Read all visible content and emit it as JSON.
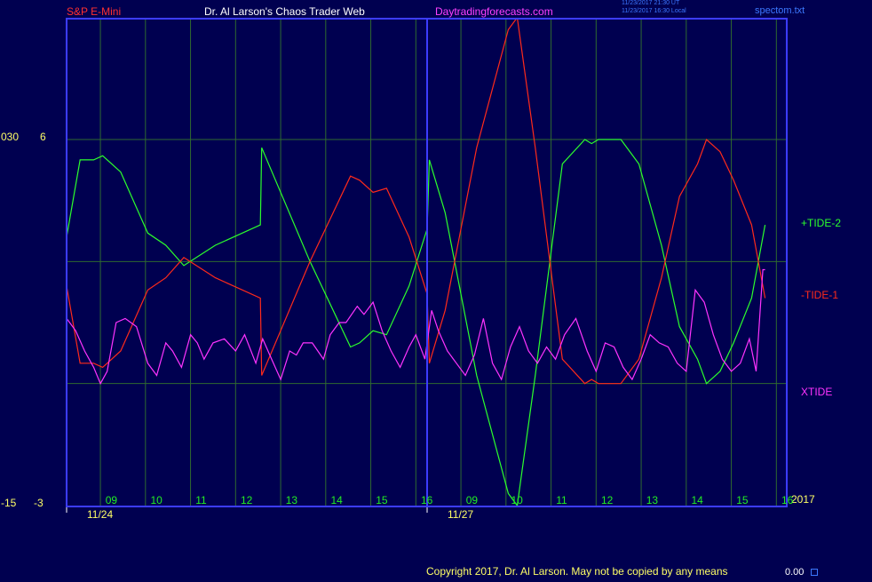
{
  "header": {
    "instrument": "S&P E-Mini",
    "author": "Dr. Al Larson's Chaos Trader Web",
    "site": "Daytradingforecasts.com",
    "time_utc": "11/23/2017 21:30 UT",
    "time_local": "11/23/2017 16:30 Local",
    "filename": "spectom.txt"
  },
  "footer": {
    "copyright": "Copyright 2017, Dr. Al Larson. May not be copied by any means",
    "value": "0.00",
    "year": "2017"
  },
  "colors": {
    "background": "#000050",
    "axis": "#3c3cff",
    "grid": "#2f6a2f",
    "tide_plus": "#2cff2c",
    "tide_minus": "#ff2a1a",
    "xtide": "#ff33ff",
    "header_red": "#ff3030",
    "header_white": "#ffffff",
    "header_magenta": "#ff40ff",
    "hour_label": "#22ee22",
    "date_label": "#ffff66",
    "y_label": "#ffff66"
  },
  "chart_data": {
    "type": "line",
    "title": "",
    "xlabel": "",
    "ylabel": "",
    "grid": true,
    "xlim": [
      0,
      16
    ],
    "ylim": [
      -3,
      6
    ],
    "y_ticks": [
      {
        "value": 6,
        "label": "6",
        "alt": "030"
      },
      {
        "value": -3,
        "label": "-3",
        "alt": "-15"
      }
    ],
    "x_hour_ticks": [
      {
        "x": 1,
        "label": "09"
      },
      {
        "x": 2,
        "label": "10"
      },
      {
        "x": 3,
        "label": "11"
      },
      {
        "x": 4,
        "label": "12"
      },
      {
        "x": 5,
        "label": "13"
      },
      {
        "x": 6,
        "label": "14"
      },
      {
        "x": 7,
        "label": "15"
      },
      {
        "x": 8,
        "label": "16"
      },
      {
        "x": 9,
        "label": "09"
      },
      {
        "x": 10,
        "label": "10"
      },
      {
        "x": 11,
        "label": "11"
      },
      {
        "x": 12,
        "label": "12"
      },
      {
        "x": 13,
        "label": "13"
      },
      {
        "x": 14,
        "label": "14"
      },
      {
        "x": 15,
        "label": "15"
      },
      {
        "x": 16,
        "label": "16"
      }
    ],
    "x_date_ticks": [
      {
        "x": 0,
        "label": "11/24"
      },
      {
        "x": 8,
        "label": "11/27"
      }
    ],
    "series": [
      {
        "name": "+TIDE-2",
        "points": [
          [
            0,
            3.6
          ],
          [
            0.3,
            5.5
          ],
          [
            0.6,
            5.5
          ],
          [
            0.8,
            5.6
          ],
          [
            1.2,
            5.2
          ],
          [
            1.8,
            3.7
          ],
          [
            2.2,
            3.4
          ],
          [
            2.6,
            2.9
          ],
          [
            3.3,
            3.4
          ],
          [
            4.3,
            3.9
          ],
          [
            4.33,
            5.8
          ],
          [
            5.4,
            3.0
          ],
          [
            6.3,
            0.9
          ],
          [
            6.5,
            1.0
          ],
          [
            6.8,
            1.3
          ],
          [
            7.1,
            1.2
          ],
          [
            7.6,
            2.4
          ],
          [
            8.0,
            3.8
          ],
          [
            8.05,
            5.5
          ],
          [
            8.4,
            4.2
          ],
          [
            9.1,
            0.2
          ],
          [
            9.8,
            -2.7
          ],
          [
            10.0,
            -3.0
          ],
          [
            10.4,
            0.2
          ],
          [
            11.0,
            5.4
          ],
          [
            11.5,
            6.0
          ],
          [
            11.65,
            5.9
          ],
          [
            11.8,
            6.0
          ],
          [
            12.3,
            6.0
          ],
          [
            12.7,
            5.4
          ],
          [
            13.2,
            3.4
          ],
          [
            13.6,
            1.4
          ],
          [
            14.0,
            0.6
          ],
          [
            14.2,
            0.0
          ],
          [
            14.5,
            0.3
          ],
          [
            14.8,
            1.0
          ],
          [
            15.2,
            2.1
          ],
          [
            15.5,
            3.9
          ]
        ]
      },
      {
        "name": "-TIDE-1",
        "points": [
          [
            0,
            2.4
          ],
          [
            0.3,
            0.5
          ],
          [
            0.6,
            0.5
          ],
          [
            0.8,
            0.4
          ],
          [
            1.2,
            0.8
          ],
          [
            1.8,
            2.3
          ],
          [
            2.2,
            2.6
          ],
          [
            2.6,
            3.1
          ],
          [
            3.3,
            2.6
          ],
          [
            4.3,
            2.1
          ],
          [
            4.33,
            0.2
          ],
          [
            5.4,
            3.0
          ],
          [
            6.3,
            5.1
          ],
          [
            6.5,
            5.0
          ],
          [
            6.8,
            4.7
          ],
          [
            7.1,
            4.8
          ],
          [
            7.6,
            3.6
          ],
          [
            8.0,
            2.2
          ],
          [
            8.05,
            0.5
          ],
          [
            8.4,
            1.8
          ],
          [
            9.1,
            5.8
          ],
          [
            9.8,
            8.7
          ],
          [
            10.0,
            9.0
          ],
          [
            10.4,
            5.8
          ],
          [
            11.0,
            0.6
          ],
          [
            11.5,
            0.0
          ],
          [
            11.65,
            0.1
          ],
          [
            11.8,
            0.0
          ],
          [
            12.3,
            0.0
          ],
          [
            12.7,
            0.6
          ],
          [
            13.2,
            2.6
          ],
          [
            13.6,
            4.6
          ],
          [
            14.0,
            5.4
          ],
          [
            14.2,
            6.0
          ],
          [
            14.5,
            5.7
          ],
          [
            14.8,
            5.0
          ],
          [
            15.2,
            3.9
          ],
          [
            15.5,
            2.1
          ]
        ]
      },
      {
        "name": "XTIDE",
        "points": [
          [
            0,
            1.6
          ],
          [
            0.2,
            1.3
          ],
          [
            0.4,
            0.8
          ],
          [
            0.6,
            0.4
          ],
          [
            0.75,
            0.0
          ],
          [
            0.9,
            0.3
          ],
          [
            1.1,
            1.5
          ],
          [
            1.3,
            1.6
          ],
          [
            1.55,
            1.4
          ],
          [
            1.8,
            0.5
          ],
          [
            2.0,
            0.2
          ],
          [
            2.2,
            1.0
          ],
          [
            2.35,
            0.8
          ],
          [
            2.55,
            0.4
          ],
          [
            2.75,
            1.2
          ],
          [
            2.9,
            1.0
          ],
          [
            3.05,
            0.6
          ],
          [
            3.25,
            1.0
          ],
          [
            3.5,
            1.1
          ],
          [
            3.75,
            0.8
          ],
          [
            3.95,
            1.2
          ],
          [
            4.2,
            0.5
          ],
          [
            4.35,
            1.1
          ],
          [
            4.55,
            0.6
          ],
          [
            4.75,
            0.1
          ],
          [
            4.95,
            0.8
          ],
          [
            5.1,
            0.7
          ],
          [
            5.25,
            1.0
          ],
          [
            5.45,
            1.0
          ],
          [
            5.7,
            0.6
          ],
          [
            5.85,
            1.2
          ],
          [
            6.05,
            1.5
          ],
          [
            6.2,
            1.5
          ],
          [
            6.45,
            1.9
          ],
          [
            6.6,
            1.7
          ],
          [
            6.8,
            2.0
          ],
          [
            7.0,
            1.3
          ],
          [
            7.2,
            0.8
          ],
          [
            7.4,
            0.4
          ],
          [
            7.6,
            0.9
          ],
          [
            7.75,
            1.2
          ],
          [
            7.95,
            0.6
          ],
          [
            8.1,
            1.8
          ],
          [
            8.25,
            1.3
          ],
          [
            8.45,
            0.8
          ],
          [
            8.65,
            0.5
          ],
          [
            8.85,
            0.2
          ],
          [
            9.05,
            0.7
          ],
          [
            9.25,
            1.6
          ],
          [
            9.45,
            0.5
          ],
          [
            9.65,
            0.1
          ],
          [
            9.85,
            0.9
          ],
          [
            10.05,
            1.4
          ],
          [
            10.25,
            0.8
          ],
          [
            10.45,
            0.5
          ],
          [
            10.65,
            0.9
          ],
          [
            10.85,
            0.6
          ],
          [
            11.05,
            1.2
          ],
          [
            11.3,
            1.6
          ],
          [
            11.55,
            0.8
          ],
          [
            11.75,
            0.3
          ],
          [
            11.95,
            1.0
          ],
          [
            12.15,
            0.9
          ],
          [
            12.35,
            0.4
          ],
          [
            12.55,
            0.1
          ],
          [
            12.75,
            0.6
          ],
          [
            12.95,
            1.2
          ],
          [
            13.15,
            1.0
          ],
          [
            13.35,
            0.9
          ],
          [
            13.55,
            0.5
          ],
          [
            13.75,
            0.3
          ],
          [
            13.95,
            2.3
          ],
          [
            14.15,
            2.0
          ],
          [
            14.35,
            1.2
          ],
          [
            14.55,
            0.6
          ],
          [
            14.75,
            0.3
          ],
          [
            14.95,
            0.5
          ],
          [
            15.15,
            1.1
          ],
          [
            15.3,
            0.3
          ],
          [
            15.45,
            2.8
          ],
          [
            15.5,
            2.8
          ]
        ]
      }
    ]
  }
}
